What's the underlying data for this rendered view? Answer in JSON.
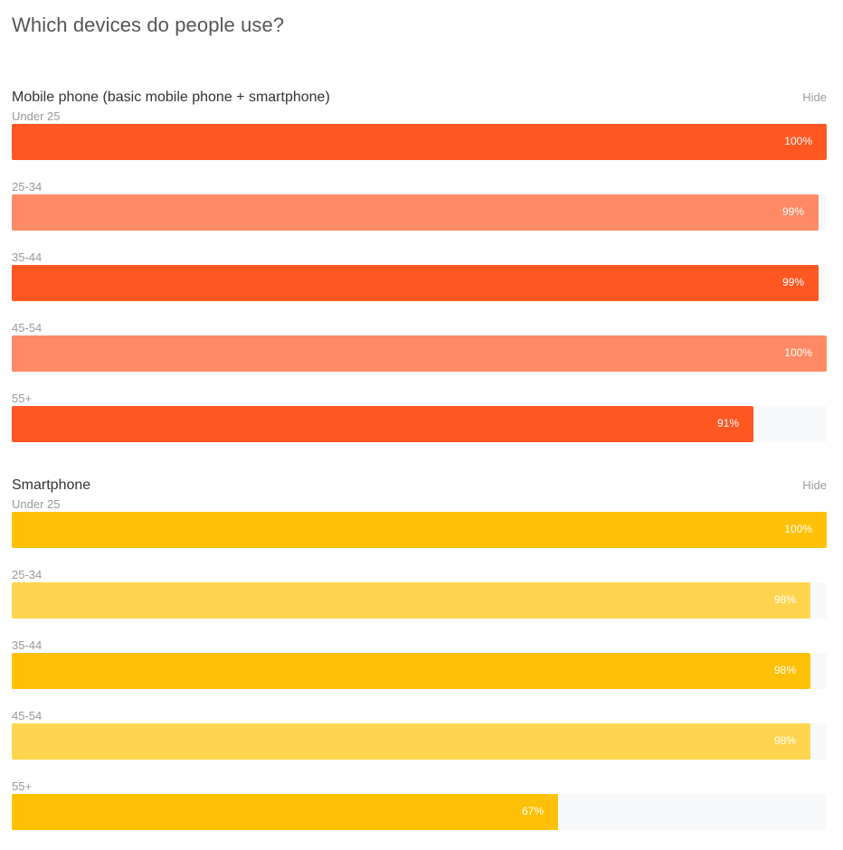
{
  "page": {
    "title": "Which devices do people use?"
  },
  "chart_data": [
    {
      "type": "bar",
      "orientation": "horizontal",
      "title": "Mobile phone (basic mobile phone + smartphone)",
      "hide_label": "Hide",
      "categories": [
        "Under 25",
        "25-34",
        "35-44",
        "45-54",
        "55+"
      ],
      "values": [
        100,
        99,
        99,
        100,
        91
      ],
      "value_labels": [
        "100%",
        "99%",
        "99%",
        "100%",
        "91%"
      ],
      "xlim": [
        0,
        100
      ],
      "colors": {
        "primary": "#FF5722",
        "secondary": "#FF8A65",
        "track": "#F8F9FA"
      }
    },
    {
      "type": "bar",
      "orientation": "horizontal",
      "title": "Smartphone",
      "hide_label": "Hide",
      "categories": [
        "Under 25",
        "25-34",
        "35-44",
        "45-54",
        "55+"
      ],
      "values": [
        100,
        98,
        98,
        98,
        67
      ],
      "value_labels": [
        "100%",
        "98%",
        "98%",
        "98%",
        "67%"
      ],
      "xlim": [
        0,
        100
      ],
      "colors": {
        "primary": "#FFC107",
        "secondary": "#FFD54F",
        "track": "#F8F9FA"
      }
    }
  ]
}
